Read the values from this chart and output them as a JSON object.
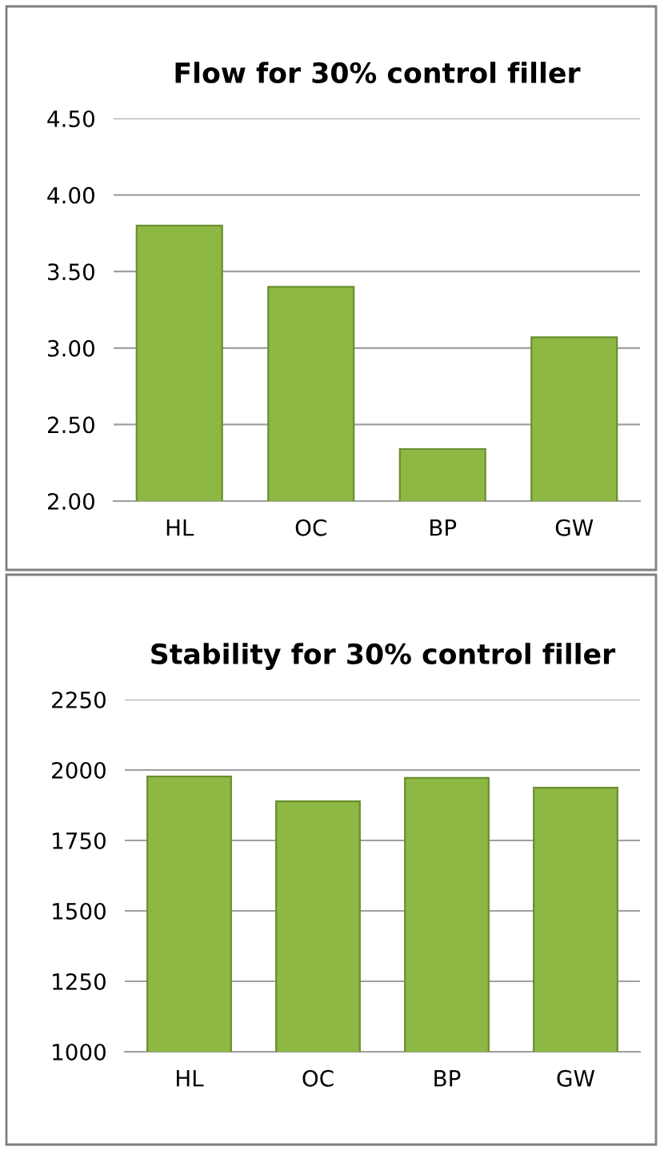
{
  "chart_data": [
    {
      "type": "bar",
      "title": "Flow for 30% control filler",
      "categories": [
        "HL",
        "OC",
        "BP",
        "GW"
      ],
      "values": [
        3.8,
        3.4,
        2.34,
        3.07
      ],
      "color": "#8db843",
      "ylim": [
        2.0,
        4.5
      ],
      "yticks": [
        {
          "value": 2.0,
          "label": "2.00"
        },
        {
          "value": 2.5,
          "label": "2.50"
        },
        {
          "value": 3.0,
          "label": "3.00"
        },
        {
          "value": 3.5,
          "label": "3.50"
        },
        {
          "value": 4.0,
          "label": "4.00"
        },
        {
          "value": 4.5,
          "label": "4.50"
        }
      ],
      "grid": "y",
      "legend": false
    },
    {
      "type": "bar",
      "title": "Stability for 30% control filler",
      "categories": [
        "HL",
        "OC",
        "BP",
        "GW"
      ],
      "values": [
        1977,
        1889,
        1972,
        1937
      ],
      "color": "#8db843",
      "ylim": [
        1000,
        2250
      ],
      "yticks": [
        1000,
        1250,
        1500,
        1750,
        2000,
        2250
      ],
      "grid": "y",
      "legend": false
    }
  ]
}
